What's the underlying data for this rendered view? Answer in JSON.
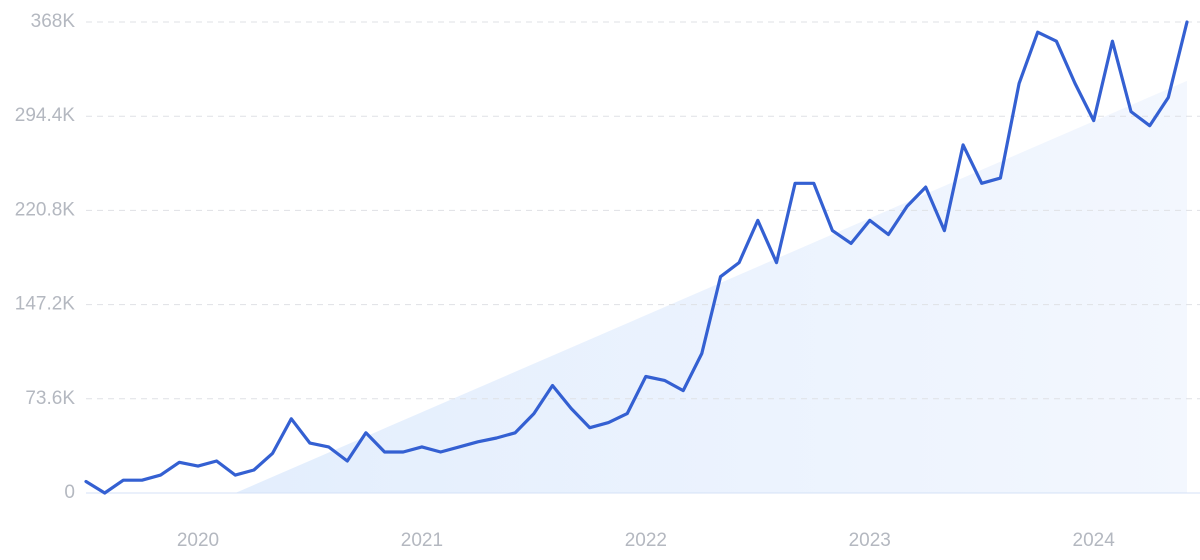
{
  "chart_data": {
    "type": "line",
    "x": [
      "2019-07",
      "2019-08",
      "2019-09",
      "2019-10",
      "2019-11",
      "2019-12",
      "2020-01",
      "2020-02",
      "2020-03",
      "2020-04",
      "2020-05",
      "2020-06",
      "2020-07",
      "2020-08",
      "2020-09",
      "2020-10",
      "2020-11",
      "2020-12",
      "2021-01",
      "2021-02",
      "2021-03",
      "2021-04",
      "2021-05",
      "2021-06",
      "2021-07",
      "2021-08",
      "2021-09",
      "2021-10",
      "2021-11",
      "2021-12",
      "2022-01",
      "2022-02",
      "2022-03",
      "2022-04",
      "2022-05",
      "2022-06",
      "2022-07",
      "2022-08",
      "2022-09",
      "2022-10",
      "2022-11",
      "2022-12",
      "2023-01",
      "2023-02",
      "2023-03",
      "2023-04",
      "2023-05",
      "2023-06",
      "2023-07",
      "2023-08",
      "2023-09",
      "2023-10",
      "2023-11",
      "2023-12",
      "2024-01",
      "2024-02",
      "2024-03",
      "2024-04",
      "2024-05",
      "2024-06"
    ],
    "series": [
      {
        "color": "#3460d2",
        "values": [
          9000,
          0,
          10000,
          10000,
          14000,
          24000,
          21000,
          25000,
          14000,
          18000,
          31000,
          58000,
          39000,
          36000,
          25000,
          47000,
          32000,
          32000,
          36000,
          32000,
          36000,
          40000,
          43000,
          47000,
          62000,
          84000,
          66000,
          51000,
          55000,
          62000,
          91000,
          88000,
          80000,
          109000,
          169000,
          180000,
          213000,
          180000,
          242000,
          242000,
          205000,
          195000,
          213000,
          202000,
          224000,
          239000,
          205000,
          272000,
          242000,
          246000,
          320000,
          360000,
          353000,
          320000,
          291000,
          353000,
          298000,
          287000,
          309000,
          368000
        ]
      }
    ],
    "trend": {
      "x": [
        "2020-03",
        "2024-06"
      ],
      "values": [
        0,
        322000
      ],
      "color": "#e4efff"
    },
    "ylim": [
      0,
      368000
    ],
    "yticks": [
      0,
      {
        "value": 73600,
        "label": "73.6K"
      },
      {
        "value": 147200,
        "label": "147.2K"
      },
      {
        "value": 220800,
        "label": "220.8K"
      },
      {
        "value": 294400,
        "label": "294.4K"
      },
      {
        "value": 368000,
        "label": "368K"
      }
    ],
    "xticks": [
      "2020",
      "2021",
      "2022",
      "2023",
      "2024"
    ],
    "grid": true
  }
}
